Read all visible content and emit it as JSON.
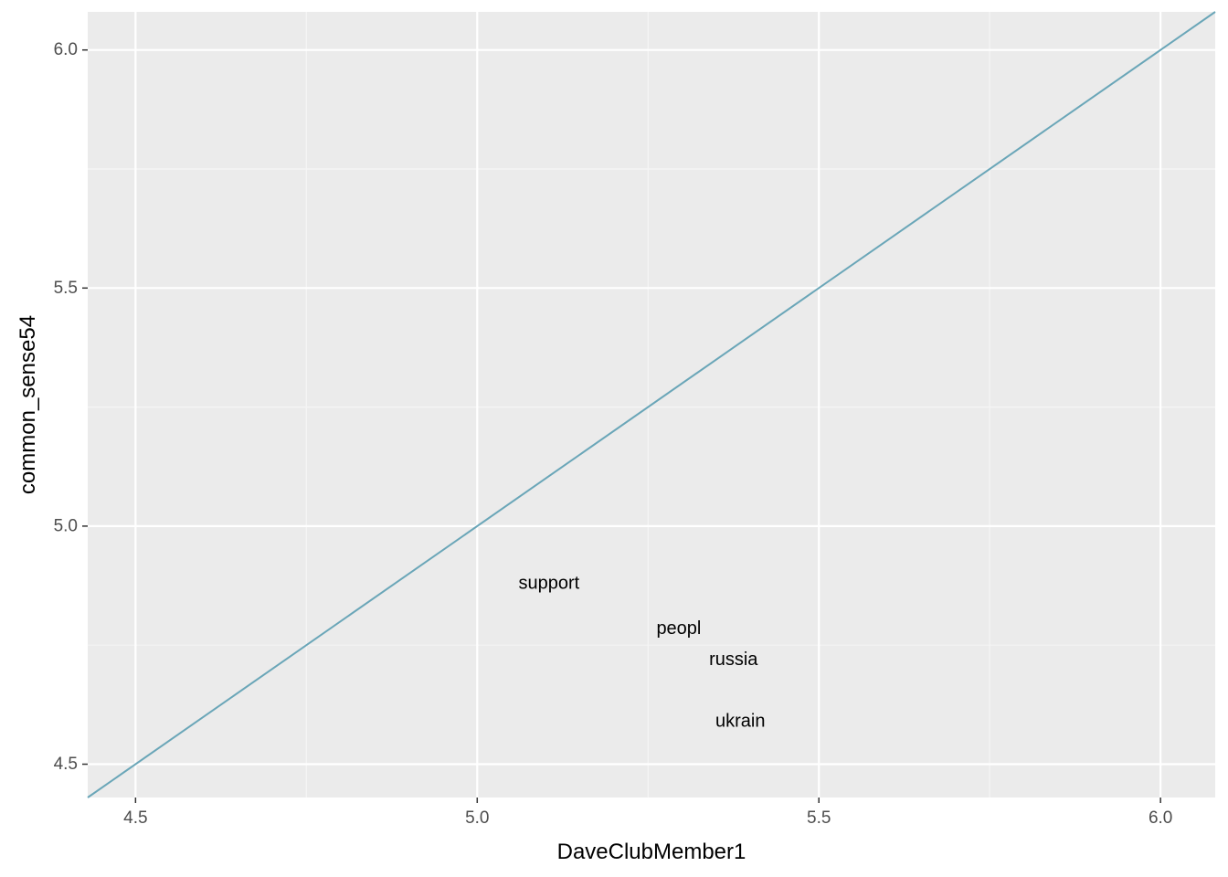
{
  "chart_data": {
    "type": "scatter",
    "title": "",
    "xlabel": "DaveClubMember1",
    "ylabel": "common_sense54",
    "xlim": [
      4.43,
      6.08
    ],
    "ylim": [
      4.43,
      6.08
    ],
    "x_ticks": [
      "4.5",
      "5.0",
      "5.5",
      "6.0"
    ],
    "y_ticks": [
      "4.5",
      "5.0",
      "5.5",
      "6.0"
    ],
    "x_tick_values": [
      4.5,
      5.0,
      5.5,
      6.0
    ],
    "y_tick_values": [
      4.5,
      5.0,
      5.5,
      6.0
    ],
    "grid": true,
    "reference_line": {
      "slope": 1,
      "intercept": 0,
      "color": "#6aa6b8"
    },
    "points": [
      {
        "label": "support",
        "x": 5.105,
        "y": 4.88
      },
      {
        "label": "peopl",
        "x": 5.295,
        "y": 4.785
      },
      {
        "label": "russia",
        "x": 5.375,
        "y": 4.72
      },
      {
        "label": "ukrain",
        "x": 5.385,
        "y": 4.59
      }
    ],
    "colors": {
      "panel": "#ebebeb",
      "grid_major": "#ffffff",
      "grid_minor": "#f5f5f5",
      "tick": "#333333"
    }
  }
}
